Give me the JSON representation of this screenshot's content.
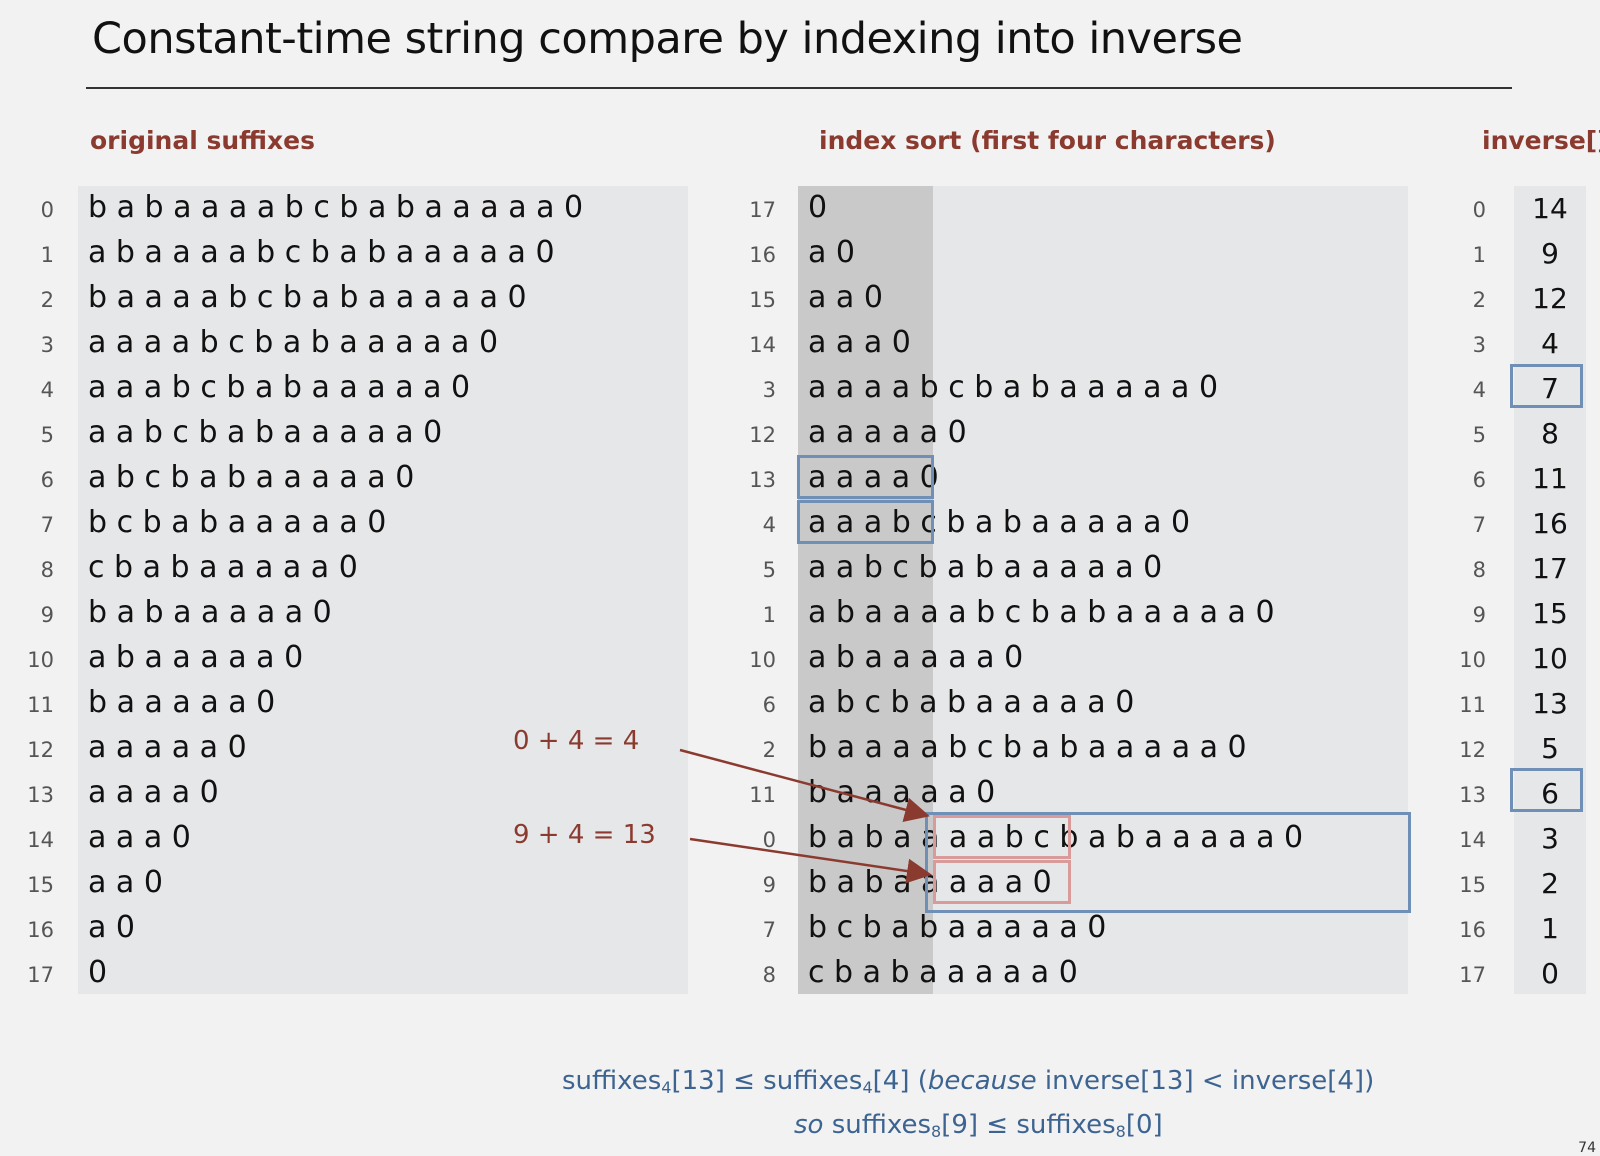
{
  "title": "Constant-time string compare by indexing into inverse",
  "headers": {
    "original": "original suffixes",
    "sorted": "index sort (first four characters)",
    "inverse": "inverse[]"
  },
  "original": [
    {
      "index": "0",
      "text": "b a b a a a a b c b a b a a a a a 0"
    },
    {
      "index": "1",
      "text": "a b a a a a b c b a b a a a a a 0"
    },
    {
      "index": "2",
      "text": "b a a a a b c b a b a a a a a 0"
    },
    {
      "index": "3",
      "text": "a a a a b c b a b a a a a a 0"
    },
    {
      "index": "4",
      "text": "a a a b c b a b a a a a a 0"
    },
    {
      "index": "5",
      "text": "a a b c b a b a a a a a 0"
    },
    {
      "index": "6",
      "text": "a b c b a b a a a a a 0"
    },
    {
      "index": "7",
      "text": "b c b a b a a a a a 0"
    },
    {
      "index": "8",
      "text": "c b a b a a a a a 0"
    },
    {
      "index": "9",
      "text": "b a b a a a a a 0"
    },
    {
      "index": "10",
      "text": "a b a a a a a 0"
    },
    {
      "index": "11",
      "text": "b a a a a a 0"
    },
    {
      "index": "12",
      "text": "a a a a a 0"
    },
    {
      "index": "13",
      "text": "a a a a 0"
    },
    {
      "index": "14",
      "text": "a a a 0"
    },
    {
      "index": "15",
      "text": "a a 0"
    },
    {
      "index": "16",
      "text": "a 0"
    },
    {
      "index": "17",
      "text": "0"
    }
  ],
  "sorted": [
    {
      "index": "17",
      "text": "0"
    },
    {
      "index": "16",
      "text": "a 0"
    },
    {
      "index": "15",
      "text": "a a 0"
    },
    {
      "index": "14",
      "text": "a a a 0"
    },
    {
      "index": "3",
      "text": "a a a a b c b a b a a a a a 0"
    },
    {
      "index": "12",
      "text": "a a a a a 0"
    },
    {
      "index": "13",
      "text": "a a a a 0"
    },
    {
      "index": "4",
      "text": "a a a b c b a b a a a a a 0"
    },
    {
      "index": "5",
      "text": "a a b c b a b a a a a a 0"
    },
    {
      "index": "1",
      "text": "a b a a a a b c b a b a a a a a 0"
    },
    {
      "index": "10",
      "text": "a b a a a a a 0"
    },
    {
      "index": "6",
      "text": "a b c b a b a a a a a 0"
    },
    {
      "index": "2",
      "text": "b a a a a b c b a b a a a a a 0"
    },
    {
      "index": "11",
      "text": "b a a a a a 0"
    },
    {
      "index": "0",
      "text": "b a b a a a a b c b a b a a a a a 0"
    },
    {
      "index": "9",
      "text": "b a b a a a a a 0"
    },
    {
      "index": "7",
      "text": "b c b a b a a a a a 0"
    },
    {
      "index": "8",
      "text": "c b a b a a a a a 0"
    }
  ],
  "inverse": [
    {
      "index": "0",
      "value": "14"
    },
    {
      "index": "1",
      "value": "9"
    },
    {
      "index": "2",
      "value": "12"
    },
    {
      "index": "3",
      "value": "4"
    },
    {
      "index": "4",
      "value": "7"
    },
    {
      "index": "5",
      "value": "8"
    },
    {
      "index": "6",
      "value": "11"
    },
    {
      "index": "7",
      "value": "16"
    },
    {
      "index": "8",
      "value": "17"
    },
    {
      "index": "9",
      "value": "15"
    },
    {
      "index": "10",
      "value": "10"
    },
    {
      "index": "11",
      "value": "13"
    },
    {
      "index": "12",
      "value": "5"
    },
    {
      "index": "13",
      "value": "6"
    },
    {
      "index": "14",
      "value": "3"
    },
    {
      "index": "15",
      "value": "2"
    },
    {
      "index": "16",
      "value": "1"
    },
    {
      "index": "17",
      "value": "0"
    }
  ],
  "annotations": {
    "eq1": "0 + 4 = 4",
    "eq2": "9 + 4 = 13"
  },
  "note": {
    "line1_a": "suffixes",
    "line1_sub_a": "4",
    "line1_b": "[13] ≤ suffixes",
    "line1_sub_b": "4",
    "line1_c": "[4]  (",
    "line1_because": "because",
    "line1_d": " inverse[13] < inverse[4])",
    "line2_so": "so",
    "line2_a": " suffixes",
    "line2_sub_a": "8",
    "line2_b": "[9] ≤ suffixes",
    "line2_sub_b": "8",
    "line2_c": "[0]"
  },
  "page_number": "74",
  "colors": {
    "accent_red": "#8b3a2f",
    "box_blue": "#6f8fb6",
    "box_pink": "#d99a9a",
    "note_blue": "#3d6491"
  }
}
